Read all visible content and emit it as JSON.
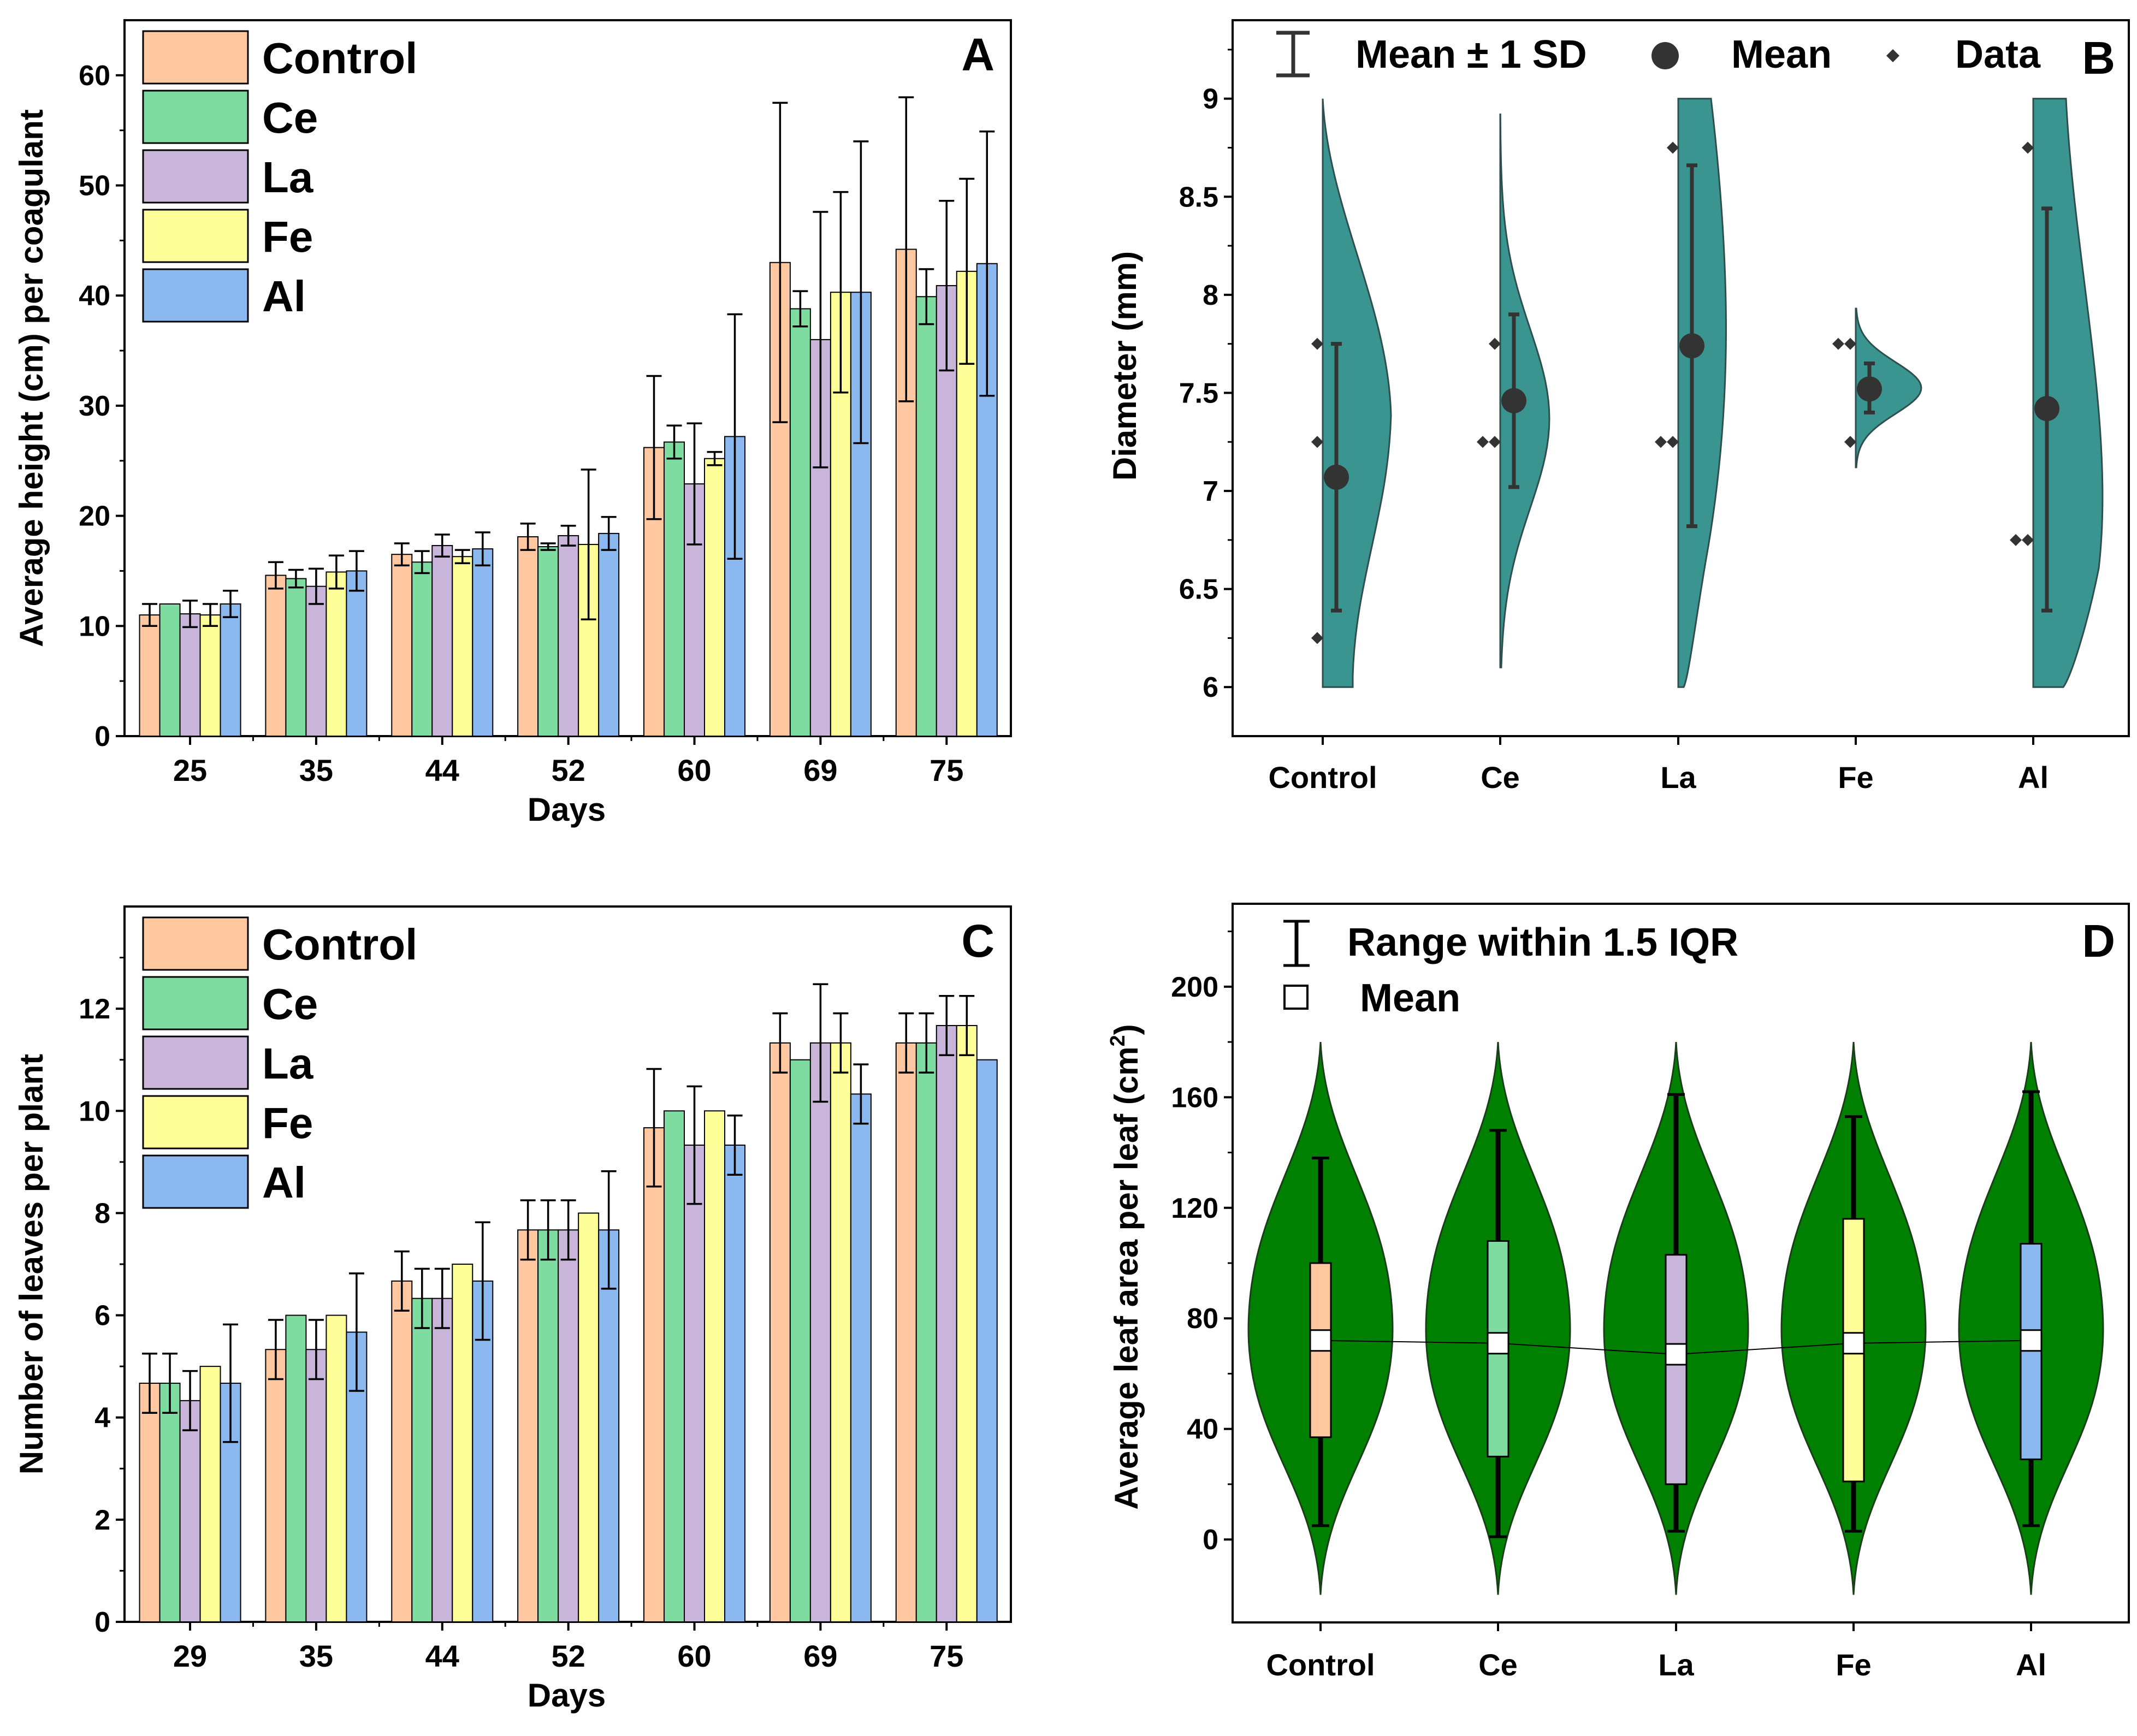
{
  "colors": {
    "Control": "#FFC8A0",
    "Ce": "#7FDCA0",
    "La": "#C9B4DA",
    "Fe": "#FFFF99",
    "Al": "#8CB8F0",
    "violin_teal": "#3A9490",
    "violin_green": "#008000"
  },
  "chart_data": [
    {
      "panel": "A",
      "type": "bar",
      "panel_label": "A",
      "xlabel": "Days",
      "ylabel": "Average height (cm) per coagulant",
      "ylim": [
        0,
        65
      ],
      "yticks": [
        "0",
        "10",
        "20",
        "30",
        "40",
        "50",
        "60"
      ],
      "categories": [
        "25",
        "35",
        "44",
        "52",
        "60",
        "69",
        "75"
      ],
      "legend": [
        "Control",
        "Ce",
        "La",
        "Fe",
        "Al"
      ],
      "legend_position": "top-left",
      "series": [
        {
          "name": "Control",
          "values": [
            11.0,
            14.6,
            16.5,
            18.1,
            26.2,
            43.0,
            44.2
          ],
          "err": [
            1.0,
            1.2,
            1.0,
            1.2,
            6.5,
            14.5,
            13.8
          ]
        },
        {
          "name": "Ce",
          "values": [
            12.0,
            14.3,
            15.8,
            17.2,
            26.7,
            38.8,
            39.9
          ],
          "err": [
            0.0,
            0.8,
            1.0,
            0.3,
            1.5,
            1.6,
            2.5
          ]
        },
        {
          "name": "La",
          "values": [
            11.1,
            13.6,
            17.3,
            18.2,
            22.9,
            36.0,
            40.9
          ],
          "err": [
            1.2,
            1.6,
            1.0,
            0.9,
            5.5,
            11.6,
            7.7
          ]
        },
        {
          "name": "Fe",
          "values": [
            11.0,
            14.9,
            16.3,
            17.4,
            25.2,
            40.3,
            42.2
          ],
          "err": [
            1.0,
            1.5,
            0.6,
            6.8,
            0.6,
            9.1,
            8.4
          ]
        },
        {
          "name": "Al",
          "values": [
            12.0,
            15.0,
            17.0,
            18.4,
            27.2,
            40.3,
            42.9
          ],
          "err": [
            1.2,
            1.8,
            1.5,
            1.5,
            11.1,
            13.7,
            12.0
          ]
        }
      ]
    },
    {
      "panel": "B",
      "type": "violin",
      "panel_label": "B",
      "ylabel": "Diameter  (mm)",
      "ylim": [
        5.75,
        9.4
      ],
      "yticks": [
        "6",
        "6.5",
        "7",
        "7.5",
        "8",
        "8.5",
        "9"
      ],
      "categories": [
        "Control",
        "Ce",
        "La",
        "Fe",
        "Al"
      ],
      "legend": [
        "Mean ± 1 SD",
        "Mean",
        "Data"
      ],
      "legend_position": "top",
      "groups": [
        {
          "name": "Control",
          "mean": 7.07,
          "sd_low": 6.39,
          "sd_high": 7.75,
          "points": [
            7.75,
            7.25,
            6.25
          ],
          "violin": {
            "top": 9.0,
            "bottom": 6.0
          }
        },
        {
          "name": "Ce",
          "mean": 7.46,
          "sd_low": 7.02,
          "sd_high": 7.9,
          "points": [
            7.75,
            7.25,
            7.25
          ],
          "violin": {
            "top": 8.92,
            "bottom": 6.1
          }
        },
        {
          "name": "La",
          "mean": 7.74,
          "sd_low": 6.82,
          "sd_high": 8.66,
          "points": [
            8.75,
            7.25,
            7.25
          ],
          "violin": {
            "top": 9.0,
            "bottom": 6.0
          }
        },
        {
          "name": "Fe",
          "mean": 7.52,
          "sd_low": 7.4,
          "sd_high": 7.65,
          "points": [
            7.75,
            7.75,
            7.25
          ],
          "violin": {
            "top": 7.93,
            "bottom": 7.12
          }
        },
        {
          "name": "Al",
          "mean": 7.42,
          "sd_low": 6.39,
          "sd_high": 8.44,
          "points": [
            8.75,
            6.75,
            6.75
          ],
          "violin": {
            "top": 9.0,
            "bottom": 6.0
          }
        }
      ]
    },
    {
      "panel": "C",
      "type": "bar",
      "panel_label": "C",
      "xlabel": "Days",
      "ylabel": "Number of leaves per plant",
      "ylim": [
        0,
        14
      ],
      "yticks": [
        "0",
        "2",
        "4",
        "6",
        "8",
        "10",
        "12"
      ],
      "categories": [
        "29",
        "35",
        "44",
        "52",
        "60",
        "69",
        "75"
      ],
      "legend": [
        "Control",
        "Ce",
        "La",
        "Fe",
        "Al"
      ],
      "legend_position": "top-left",
      "series": [
        {
          "name": "Control",
          "values": [
            4.67,
            5.33,
            6.67,
            7.67,
            9.67,
            11.33,
            11.33
          ],
          "err": [
            0.58,
            0.58,
            0.58,
            0.58,
            1.15,
            0.58,
            0.58
          ]
        },
        {
          "name": "Ce",
          "values": [
            4.67,
            6.0,
            6.33,
            7.67,
            10.0,
            11.0,
            11.33
          ],
          "err": [
            0.58,
            0.0,
            0.58,
            0.58,
            0.0,
            0.0,
            0.58
          ]
        },
        {
          "name": "La",
          "values": [
            4.33,
            5.33,
            6.33,
            7.67,
            9.33,
            11.33,
            11.67
          ],
          "err": [
            0.58,
            0.58,
            0.58,
            0.58,
            1.15,
            1.15,
            0.58
          ]
        },
        {
          "name": "Fe",
          "values": [
            5.0,
            6.0,
            7.0,
            8.0,
            10.0,
            11.33,
            11.67
          ],
          "err": [
            0.0,
            0.0,
            0.0,
            0.0,
            0.0,
            0.58,
            0.58
          ]
        },
        {
          "name": "Al",
          "values": [
            4.67,
            5.67,
            6.67,
            7.67,
            9.33,
            10.33,
            11.0
          ],
          "err": [
            1.15,
            1.15,
            1.15,
            1.15,
            0.58,
            0.58,
            0.0
          ]
        }
      ]
    },
    {
      "panel": "D",
      "type": "violin",
      "panel_label": "D",
      "ylabel": "Average leaf area per leaf (cm²)",
      "ylabel_text": "Average leaf area per leaf (cm",
      "ylabel_sup": "2",
      "ylabel_close": ")",
      "ylim": [
        -30,
        230
      ],
      "yticks": [
        "0",
        "40",
        "80",
        "120",
        "160",
        "200"
      ],
      "categories": [
        "Control",
        "Ce",
        "La",
        "Fe",
        "Al"
      ],
      "legend": [
        "Range within 1.5 IQR",
        "Mean"
      ],
      "legend_position": "top-left",
      "groups": [
        {
          "name": "Control",
          "mean": 72,
          "q1": 37,
          "q3": 100,
          "whisker_low": 5,
          "whisker_high": 138,
          "violin": {
            "top": 180,
            "bottom": -20
          }
        },
        {
          "name": "Ce",
          "mean": 71,
          "q1": 30,
          "q3": 108,
          "whisker_low": 1,
          "whisker_high": 148,
          "violin": {
            "top": 180,
            "bottom": -20
          }
        },
        {
          "name": "La",
          "mean": 67,
          "q1": 20,
          "q3": 103,
          "whisker_low": 3,
          "whisker_high": 161,
          "violin": {
            "top": 180,
            "bottom": -20
          }
        },
        {
          "name": "Fe",
          "mean": 71,
          "q1": 21,
          "q3": 116,
          "whisker_low": 3,
          "whisker_high": 153,
          "violin": {
            "top": 180,
            "bottom": -20
          }
        },
        {
          "name": "Al",
          "mean": 72,
          "q1": 29,
          "q3": 107,
          "whisker_low": 5,
          "whisker_high": 162,
          "violin": {
            "top": 180,
            "bottom": -20
          }
        }
      ]
    }
  ]
}
